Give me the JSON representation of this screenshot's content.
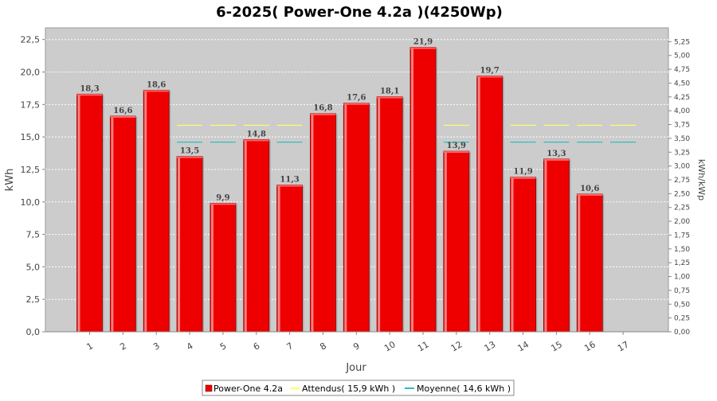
{
  "chart_data": {
    "type": "bar",
    "title": "6-2025( Power-One 4.2a )(4250Wp)",
    "xlabel": "Jour",
    "ylabel": "kWh",
    "y2label": "kWh/kWp",
    "ylim": [
      0,
      23.4
    ],
    "y2lim": [
      0,
      5.5
    ],
    "yticks": [
      "0,0",
      "2,5",
      "5,0",
      "7,5",
      "10,0",
      "12,5",
      "15,0",
      "17,5",
      "20,0",
      "22,5"
    ],
    "y2ticks": [
      "0,00",
      "0,25",
      "0,50",
      "0,75",
      "1,00",
      "1,25",
      "1,50",
      "1,75",
      "2,00",
      "2,25",
      "2,50",
      "2,75",
      "3,00",
      "3,25",
      "3,50",
      "3,75",
      "4,00",
      "4,25",
      "4,50",
      "4,75",
      "5,00",
      "5,25"
    ],
    "categories": [
      "1",
      "2",
      "3",
      "4",
      "5",
      "6",
      "7",
      "8",
      "9",
      "10",
      "11",
      "12",
      "13",
      "14",
      "15",
      "16",
      "17"
    ],
    "series": [
      {
        "name": "Power-One 4.2a",
        "color": "#ee0000",
        "values": [
          18.3,
          16.6,
          18.6,
          13.5,
          9.9,
          14.8,
          11.3,
          16.8,
          17.6,
          18.1,
          21.9,
          13.9,
          19.7,
          11.9,
          13.3,
          10.6,
          null
        ],
        "labels": [
          "18,3",
          "16,6",
          "18,6",
          "13,5",
          "9,9",
          "14,8",
          "11,3",
          "16,8",
          "17,6",
          "18,1",
          "21,9",
          "13,9",
          "19,7",
          "11,9",
          "13,3",
          "10,6",
          ""
        ]
      },
      {
        "name": "Attendus( 15,9 kWh )",
        "color": "#ffff66",
        "value": 15.9
      },
      {
        "name": "Moyenne( 14,6 kWh )",
        "color": "#33bbbb",
        "value": 14.6
      }
    ],
    "grid": true,
    "legend": "bottom-center",
    "plot_background": "#cccccc"
  }
}
